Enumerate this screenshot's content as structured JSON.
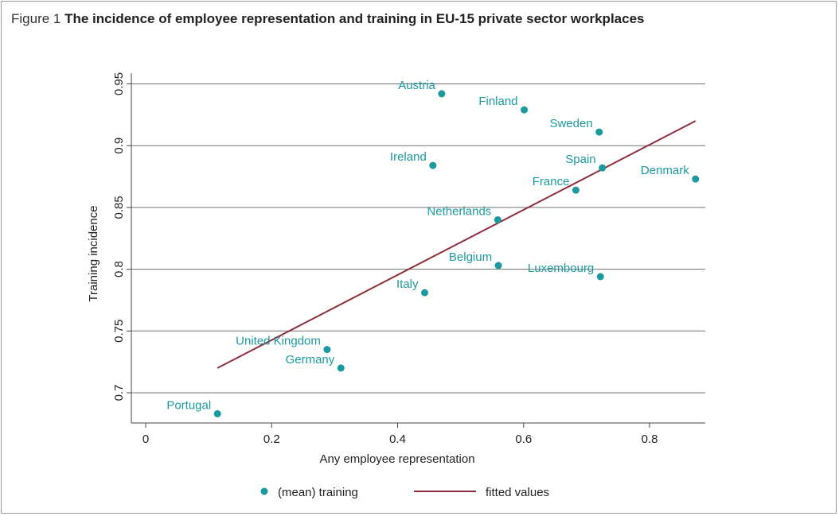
{
  "figure": {
    "number": "Figure 1",
    "title": "The incidence of employee representation and training in EU-15 private sector workplaces"
  },
  "colors": {
    "point": "#1a9a9e",
    "fit_line": "#8b2e3a",
    "grid": "#707070",
    "axis": "#444444"
  },
  "chart_data": {
    "type": "scatter",
    "xlabel": "Any employee representation",
    "ylabel": "Training incidence",
    "xlim": [
      0,
      0.88
    ],
    "ylim": [
      0.68,
      0.955
    ],
    "xticks": [
      0,
      0.2,
      0.4,
      0.6,
      0.8
    ],
    "xtick_labels": [
      "0",
      "0.2",
      "0.4",
      "0.6",
      "0.8"
    ],
    "yticks": [
      0.7,
      0.75,
      0.8,
      0.85,
      0.9,
      0.95
    ],
    "ytick_labels": [
      "0.7",
      "0.75",
      "0.8",
      "0.85",
      "0.9",
      "0.95"
    ],
    "grid": "horizontal",
    "series": [
      {
        "name": "(mean) training",
        "kind": "points",
        "points": [
          {
            "label": "Austria",
            "x": 0.47,
            "y": 0.942
          },
          {
            "label": "Finland",
            "x": 0.601,
            "y": 0.929
          },
          {
            "label": "Sweden",
            "x": 0.72,
            "y": 0.911
          },
          {
            "label": "Ireland",
            "x": 0.456,
            "y": 0.884
          },
          {
            "label": "Spain",
            "x": 0.725,
            "y": 0.882
          },
          {
            "label": "Denmark",
            "x": 0.873,
            "y": 0.873
          },
          {
            "label": "France",
            "x": 0.683,
            "y": 0.864
          },
          {
            "label": "Netherlands",
            "x": 0.559,
            "y": 0.84
          },
          {
            "label": "Belgium",
            "x": 0.56,
            "y": 0.803
          },
          {
            "label": "Luxembourg",
            "x": 0.722,
            "y": 0.794
          },
          {
            "label": "Italy",
            "x": 0.443,
            "y": 0.781
          },
          {
            "label": "United Kingdom",
            "x": 0.288,
            "y": 0.735
          },
          {
            "label": "Germany",
            "x": 0.31,
            "y": 0.72
          },
          {
            "label": "Portugal",
            "x": 0.114,
            "y": 0.683
          }
        ]
      },
      {
        "name": "fitted values",
        "kind": "line",
        "x": [
          0.114,
          0.873
        ],
        "y": [
          0.72,
          0.92
        ]
      }
    ],
    "legend": {
      "position": "bottom",
      "entries": [
        "(mean) training",
        "fitted values"
      ]
    }
  }
}
